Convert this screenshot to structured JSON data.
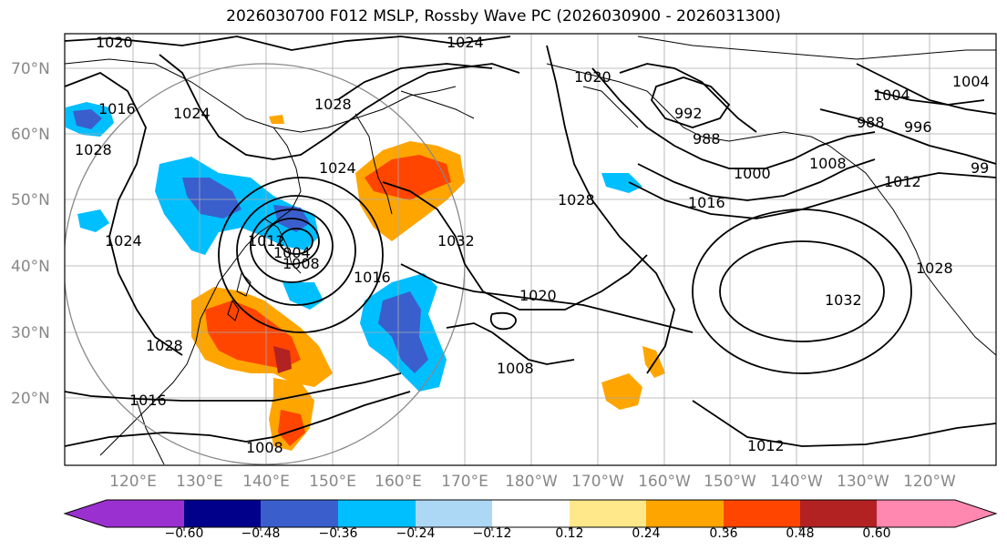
{
  "title": "2026030700 F012 MSLP, Rossby Wave PC (2026030900 - 2026031300)",
  "lat_labels": [
    "70°N",
    "60°N",
    "50°N",
    "40°N",
    "30°N",
    "20°N"
  ],
  "lon_labels": [
    "120°E",
    "130°E",
    "140°E",
    "150°E",
    "160°E",
    "170°E",
    "180°W",
    "170°W",
    "160°W",
    "150°W",
    "140°W",
    "130°W",
    "120°W"
  ],
  "colorbar": {
    "ticks": [
      "−0.60",
      "−0.48",
      "−0.36",
      "−0.24",
      "−0.12",
      "0.12",
      "0.24",
      "0.36",
      "0.48",
      "0.60"
    ],
    "colors": [
      "#9b30d0",
      "#00008b",
      "#3a5fcd",
      "#00bfff",
      "#add8f5",
      "#ffffff",
      "#ffe88a",
      "#ffa500",
      "#ff4500",
      "#b22222",
      "#ff88b0",
      "#ff88b0"
    ]
  },
  "contour_labels": [
    "1020",
    "1024",
    "1016",
    "1028",
    "1024",
    "1024",
    "1028",
    "1024",
    "1012",
    "1004",
    "1008",
    "1016",
    "1032",
    "1028",
    "1020",
    "1008",
    "1028",
    "1016",
    "1008",
    "1020",
    "992",
    "988",
    "1004",
    "988",
    "996",
    "1000",
    "1008",
    "1016",
    "1012",
    "99",
    "1004",
    "1032",
    "1028",
    "1012"
  ]
}
